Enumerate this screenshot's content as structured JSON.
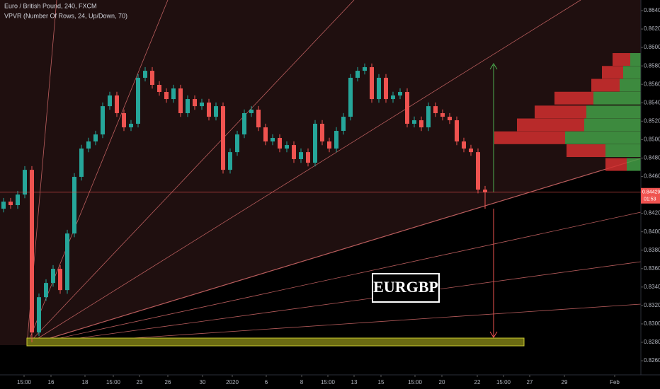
{
  "chart_data": {
    "type": "candlestick",
    "title": "Euro / British Pound, 240, FXCM",
    "subtitle": "VPVR (Number Of Rows, 24, Up/Down, 70)",
    "annotation": "EURGBP",
    "countdown": "01:53",
    "last_price": 0.84429,
    "up_color": "#26a69a",
    "down_color": "#ef5350",
    "open": [
      0.8425,
      0.84327,
      0.84289,
      0.84404,
      0.84672,
      0.82907,
      0.8329,
      0.83444,
      0.83598,
      0.83367,
      0.83981,
      0.84596,
      0.84903,
      0.8498,
      0.85056,
      0.85363,
      0.85479,
      0.85287,
      0.85133,
      0.85172,
      0.85671,
      0.85747,
      0.85594,
      0.85517,
      0.8544,
      0.85555,
      0.85287,
      0.8544,
      0.85363,
      0.85402,
      0.85248,
      0.85363,
      0.84672,
      0.84864,
      0.85056,
      0.85287,
      0.85325,
      0.85133,
      0.8498,
      0.85018,
      0.84903,
      0.84941,
      0.84788,
      0.84864,
      0.84749,
      0.85172,
      0.8498,
      0.84903,
      0.85095,
      0.85248,
      0.85671,
      0.85747,
      0.85786,
      0.8544,
      0.85671,
      0.8544,
      0.85479,
      0.85517,
      0.85172,
      0.8521,
      0.85133,
      0.85363,
      0.85287,
      0.85248,
      0.8521,
      0.8498,
      0.84903,
      0.84864,
      0.84457
    ],
    "high": [
      0.84367,
      0.84367,
      0.84444,
      0.84712,
      0.84712,
      0.8333,
      0.83484,
      0.83638,
      0.83638,
      0.84021,
      0.84636,
      0.84943,
      0.8502,
      0.85096,
      0.85403,
      0.85519,
      0.85519,
      0.85327,
      0.85212,
      0.85711,
      0.85787,
      0.85787,
      0.85634,
      0.85557,
      0.85595,
      0.85595,
      0.8548,
      0.8548,
      0.85442,
      0.85442,
      0.85403,
      0.85403,
      0.84904,
      0.85096,
      0.85327,
      0.85365,
      0.85365,
      0.85173,
      0.85058,
      0.85058,
      0.84981,
      0.84981,
      0.84904,
      0.84904,
      0.85212,
      0.85212,
      0.8502,
      0.85135,
      0.85288,
      0.85711,
      0.85787,
      0.85826,
      0.85826,
      0.85711,
      0.85711,
      0.85519,
      0.85557,
      0.85557,
      0.8525,
      0.8525,
      0.85403,
      0.85403,
      0.85327,
      0.85288,
      0.8525,
      0.8502,
      0.84943,
      0.84904,
      0.84497
    ],
    "low": [
      0.8421,
      0.84249,
      0.84249,
      0.84364,
      0.828,
      0.82867,
      0.8325,
      0.83404,
      0.83327,
      0.83327,
      0.83941,
      0.84556,
      0.84863,
      0.8494,
      0.85016,
      0.85323,
      0.85247,
      0.85093,
      0.85093,
      0.85132,
      0.85631,
      0.85554,
      0.85477,
      0.854,
      0.854,
      0.85247,
      0.85247,
      0.85323,
      0.85323,
      0.85208,
      0.85208,
      0.84632,
      0.84632,
      0.84824,
      0.85016,
      0.85247,
      0.85093,
      0.8494,
      0.8494,
      0.84863,
      0.84863,
      0.84748,
      0.84748,
      0.84709,
      0.84709,
      0.8494,
      0.84863,
      0.84863,
      0.85055,
      0.85208,
      0.85631,
      0.85707,
      0.854,
      0.854,
      0.854,
      0.854,
      0.85439,
      0.85132,
      0.85132,
      0.85093,
      0.85093,
      0.85247,
      0.85208,
      0.8517,
      0.8494,
      0.84863,
      0.84824,
      0.84417,
      0.8425
    ],
    "close": [
      0.84327,
      0.84289,
      0.84404,
      0.84672,
      0.82907,
      0.8329,
      0.83444,
      0.83598,
      0.83367,
      0.83981,
      0.84596,
      0.84903,
      0.8498,
      0.85056,
      0.85363,
      0.85479,
      0.85287,
      0.85133,
      0.85172,
      0.85671,
      0.85747,
      0.85594,
      0.85517,
      0.8544,
      0.85555,
      0.85287,
      0.8544,
      0.85363,
      0.85402,
      0.85248,
      0.85363,
      0.84672,
      0.84864,
      0.85056,
      0.85287,
      0.85325,
      0.85133,
      0.8498,
      0.85018,
      0.84903,
      0.84941,
      0.84788,
      0.84864,
      0.84749,
      0.85172,
      0.8498,
      0.84903,
      0.85095,
      0.85248,
      0.85671,
      0.85747,
      0.85786,
      0.8544,
      0.85671,
      0.8544,
      0.85479,
      0.85517,
      0.85172,
      0.8521,
      0.85133,
      0.85363,
      0.85287,
      0.85248,
      0.8521,
      0.8498,
      0.84903,
      0.84864,
      0.84457,
      0.84429
    ],
    "xlim": [
      -0.5,
      90
    ],
    "xticks": [
      {
        "value": 2.9,
        "label": "15:00"
      },
      {
        "value": 6.7,
        "label": "16"
      },
      {
        "value": 11.5,
        "label": "18"
      },
      {
        "value": 15.5,
        "label": "15:00"
      },
      {
        "value": 19.2,
        "label": "23"
      },
      {
        "value": 23.2,
        "label": "26"
      },
      {
        "value": 28.1,
        "label": "30"
      },
      {
        "value": 32.3,
        "label": "2020"
      },
      {
        "value": 37.1,
        "label": "6"
      },
      {
        "value": 42.1,
        "label": "8"
      },
      {
        "value": 45.8,
        "label": "15:00"
      },
      {
        "value": 49.5,
        "label": "13"
      },
      {
        "value": 53.3,
        "label": "15"
      },
      {
        "value": 58.1,
        "label": "15:00"
      },
      {
        "value": 61.9,
        "label": "20"
      },
      {
        "value": 66.9,
        "label": "22"
      },
      {
        "value": 70.6,
        "label": "15:00"
      },
      {
        "value": 74.3,
        "label": "27"
      },
      {
        "value": 79.2,
        "label": "29"
      },
      {
        "value": 86.3,
        "label": "Feb"
      }
    ],
    "ylim": [
      0.82447,
      0.86515
    ],
    "yticks": [
      {
        "value": 0.826,
        "label": "0.82600"
      },
      {
        "value": 0.828,
        "label": "0.82800"
      },
      {
        "value": 0.83,
        "label": "0.83000"
      },
      {
        "value": 0.832,
        "label": "0.83200"
      },
      {
        "value": 0.834,
        "label": "0.83400"
      },
      {
        "value": 0.836,
        "label": "0.83600"
      },
      {
        "value": 0.838,
        "label": "0.83800"
      },
      {
        "value": 0.84,
        "label": "0.84000"
      },
      {
        "value": 0.842,
        "label": "0.84200"
      },
      {
        "value": 0.844,
        "label": "0.84400"
      },
      {
        "value": 0.846,
        "label": "0.84600"
      },
      {
        "value": 0.848,
        "label": "0.84800"
      },
      {
        "value": 0.85,
        "label": "0.85000"
      },
      {
        "value": 0.852,
        "label": "0.85200"
      },
      {
        "value": 0.854,
        "label": "0.85400"
      },
      {
        "value": 0.856,
        "label": "0.85600"
      },
      {
        "value": 0.858,
        "label": "0.85800"
      },
      {
        "value": 0.86,
        "label": "0.86000"
      },
      {
        "value": 0.862,
        "label": "0.86200"
      },
      {
        "value": 0.864,
        "label": "0.86400"
      }
    ],
    "volume_profile": {
      "prices": [
        0.8587,
        0.8573,
        0.8559,
        0.8545,
        0.853,
        0.8516,
        0.8502,
        0.8488,
        0.8473
      ],
      "up": [
        15,
        25,
        30,
        67,
        77,
        80,
        107,
        50,
        20
      ],
      "down": [
        25,
        30,
        40,
        55,
        73,
        95,
        100,
        55,
        30
      ],
      "up_color": "#43a047",
      "down_color": "#d32f2f"
    }
  }
}
